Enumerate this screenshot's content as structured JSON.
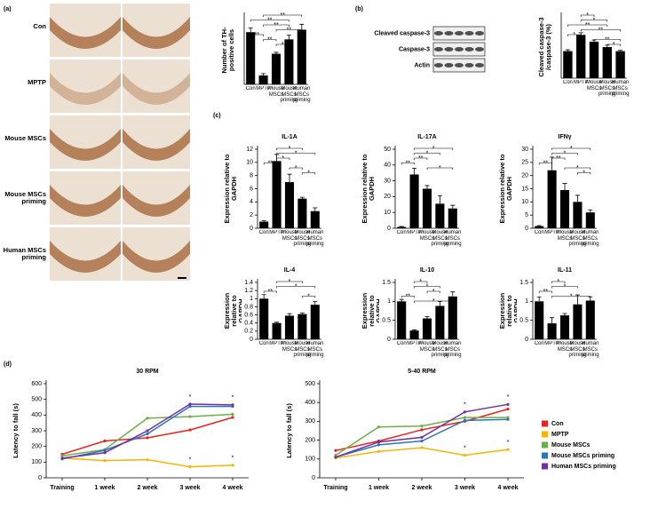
{
  "chart_data": [
    {
      "type": "bar",
      "panel": "(a)",
      "ylabel": "Number of TH-positive cells",
      "image_rows": [
        "Con",
        "MPTP",
        "Mouse MSCs",
        "Mouse MSCs priming",
        "Human MSCs priming"
      ],
      "categories": [
        "Con",
        "MPTP",
        "Mouse MSCs",
        "Mouse MSCs priming",
        "Human MSCs priming"
      ],
      "values": [
        145,
        25,
        85,
        125,
        152
      ],
      "errors": [
        12,
        5,
        4,
        12,
        15
      ],
      "ylim": [
        0,
        190
      ],
      "significance": [
        {
          "from": 1,
          "to": 4,
          "label": "**"
        },
        {
          "from": 0,
          "to": 3,
          "label": "**"
        },
        {
          "from": 1,
          "to": 3,
          "label": "**"
        },
        {
          "from": 2,
          "to": 4,
          "label": "**"
        },
        {
          "from": 0,
          "to": 1,
          "label": "**"
        },
        {
          "from": 1,
          "to": 2,
          "label": "**"
        },
        {
          "from": 2,
          "to": 3,
          "label": "*"
        }
      ]
    },
    {
      "type": "bar",
      "panel": "(b)",
      "ylabel": "Cleaved caspase-3 /caspase-3 (%)",
      "blot_labels": [
        "Cleaved caspase-3",
        "Caspase-3",
        "Actin"
      ],
      "categories": [
        "Con",
        "MPTP",
        "Mouse MSCs",
        "Mouse MSCs priming",
        "Human MSCs priming"
      ],
      "values": [
        100,
        160,
        135,
        115,
        100
      ],
      "errors": [
        5,
        8,
        6,
        7,
        3
      ],
      "ylim": [
        0,
        230
      ],
      "significance": [
        {
          "from": 1,
          "to": 2,
          "label": "*"
        },
        {
          "from": 1,
          "to": 3,
          "label": "*"
        },
        {
          "from": 0,
          "to": 3,
          "label": "**"
        },
        {
          "from": 1,
          "to": 4,
          "label": "**"
        },
        {
          "from": 0,
          "to": 1,
          "label": "*"
        },
        {
          "from": 2,
          "to": 4,
          "label": "**"
        },
        {
          "from": 3,
          "to": 4,
          "label": "*"
        }
      ]
    },
    {
      "type": "bar",
      "panel": "(c)",
      "title": "IL-1A",
      "ylabel": "Expression relative to GAPDH",
      "categories": [
        "Con",
        "MPTP",
        "Mouse MSCs",
        "Mouse MSCs priming",
        "Human MSCs priming"
      ],
      "values": [
        1,
        10.2,
        7,
        4.5,
        2.6
      ],
      "errors": [
        0.15,
        1,
        1.2,
        0.2,
        0.5
      ],
      "ylim": [
        0,
        12
      ],
      "yticks": [
        0,
        2,
        4,
        6,
        8,
        10,
        12
      ],
      "significance": [
        {
          "from": 1,
          "to": 3,
          "label": "*"
        },
        {
          "from": 1,
          "to": 4,
          "label": "*"
        },
        {
          "from": 1,
          "to": 2,
          "label": "*"
        },
        {
          "from": 0,
          "to": 1,
          "label": "**"
        },
        {
          "from": 2,
          "to": 3,
          "label": "*"
        },
        {
          "from": 3,
          "to": 4,
          "label": "*"
        }
      ]
    },
    {
      "type": "bar",
      "title": "IL-17A",
      "ylabel": "Expression relative to GAPDH",
      "categories": [
        "Con",
        "MPTP",
        "Mouse MSCs",
        "Mouse MSCs priming",
        "Human MSCs priming"
      ],
      "values": [
        0.8,
        34,
        25,
        15.5,
        12.5
      ],
      "errors": [
        0.3,
        4,
        2,
        5,
        2
      ],
      "ylim": [
        0,
        50
      ],
      "yticks": [
        0,
        10,
        20,
        30,
        40,
        50
      ],
      "significance": [
        {
          "from": 1,
          "to": 4,
          "label": "*"
        },
        {
          "from": 1,
          "to": 3,
          "label": "*"
        },
        {
          "from": 1,
          "to": 2,
          "label": "**"
        },
        {
          "from": 0,
          "to": 1,
          "label": "**"
        },
        {
          "from": 2,
          "to": 4,
          "label": "*"
        }
      ]
    },
    {
      "type": "bar",
      "title": "IFNγ",
      "ylabel": "Expression relative to GAPDH",
      "categories": [
        "Con",
        "MPTP",
        "Mouse MSCs",
        "Mouse MSCs priming",
        "Human MSCs priming"
      ],
      "values": [
        0.8,
        22,
        14.5,
        10,
        6
      ],
      "errors": [
        0.2,
        5,
        2.5,
        2.5,
        1
      ],
      "ylim": [
        0,
        30
      ],
      "yticks": [
        0,
        5,
        10,
        15,
        20,
        25,
        30
      ],
      "significance": [
        {
          "from": 1,
          "to": 4,
          "label": "*"
        },
        {
          "from": 1,
          "to": 3,
          "label": "*"
        },
        {
          "from": 1,
          "to": 2,
          "label": "**"
        },
        {
          "from": 0,
          "to": 1,
          "label": "**"
        },
        {
          "from": 2,
          "to": 4,
          "label": "*"
        },
        {
          "from": 3,
          "to": 4,
          "label": "*"
        }
      ]
    },
    {
      "type": "bar",
      "title": "IL-4",
      "ylabel": "Expression relative to GAPDH",
      "categories": [
        "Con",
        "MPTP",
        "Mouse MSCs",
        "Mouse MSCs priming",
        "Human MSCs priming"
      ],
      "values": [
        1.0,
        0.4,
        0.58,
        0.62,
        0.85
      ],
      "errors": [
        0.1,
        0.02,
        0.05,
        0.03,
        0.08
      ],
      "ylim": [
        0,
        1.4
      ],
      "yticks": [
        0,
        0.2,
        0.4,
        0.6,
        0.8,
        1,
        1.2,
        1.4
      ],
      "significance": [
        {
          "from": 1,
          "to": 3,
          "label": "*"
        },
        {
          "from": 1,
          "to": 4,
          "label": "*"
        },
        {
          "from": 0,
          "to": 1,
          "label": "**"
        },
        {
          "from": 3,
          "to": 4,
          "label": "*"
        }
      ]
    },
    {
      "type": "bar",
      "title": "IL-10",
      "ylabel": "Expression relative to GAPDH",
      "categories": [
        "Con",
        "MPTP",
        "Mouse MSCs",
        "Mouse MSCs priming",
        "Human MSCs priming"
      ],
      "values": [
        1,
        0.23,
        0.55,
        0.88,
        1.13
      ],
      "errors": [
        0.05,
        0.02,
        0.05,
        0.12,
        0.12
      ],
      "ylim": [
        0,
        1.5
      ],
      "yticks": [
        0,
        0.5,
        1,
        1.5
      ],
      "significance": [
        {
          "from": 1,
          "to": 2,
          "label": "*"
        },
        {
          "from": 1,
          "to": 3,
          "label": "*"
        },
        {
          "from": 2,
          "to": 3,
          "label": "*"
        },
        {
          "from": 0,
          "to": 1,
          "label": "**"
        },
        {
          "from": 1,
          "to": 4,
          "label": "*"
        }
      ]
    },
    {
      "type": "bar",
      "title": "IL-11",
      "ylabel": "Expression relative to GAPDH",
      "categories": [
        "Con",
        "MPTP",
        "Mouse MSCs",
        "Mouse MSCs priming",
        "Human MSCs priming"
      ],
      "values": [
        1,
        0.42,
        0.63,
        0.92,
        1.02
      ],
      "errors": [
        0.12,
        0.15,
        0.05,
        0.25,
        0.1
      ],
      "ylim": [
        0,
        1.5
      ],
      "yticks": [
        0,
        0.5,
        1,
        1.5
      ],
      "significance": [
        {
          "from": 1,
          "to": 2,
          "label": "*"
        },
        {
          "from": 1,
          "to": 3,
          "label": "*"
        },
        {
          "from": 0,
          "to": 1,
          "label": "**"
        },
        {
          "from": 1,
          "to": 4,
          "label": "*"
        }
      ]
    },
    {
      "type": "line",
      "panel": "(d)",
      "title": "30 RPM",
      "ylabel": "Latency to fall (s)",
      "categories": [
        "Training",
        "1 week",
        "2 week",
        "3 week",
        "4 week"
      ],
      "ylim": [
        0,
        600
      ],
      "yticks": [
        0,
        100,
        200,
        300,
        400,
        500,
        600
      ],
      "series": [
        {
          "name": "Con",
          "color": "#e8231f",
          "values": [
            150,
            235,
            255,
            305,
            385
          ]
        },
        {
          "name": "MPTP",
          "color": "#f5b400",
          "values": [
            125,
            110,
            115,
            70,
            80
          ]
        },
        {
          "name": "Mouse MSCs",
          "color": "#70ad47",
          "values": [
            140,
            180,
            380,
            390,
            405
          ]
        },
        {
          "name": "Mouse MSCs priming",
          "color": "#2e75b6",
          "values": [
            120,
            175,
            280,
            455,
            455
          ]
        },
        {
          "name": "Human MSCs priming",
          "color": "#7030a0",
          "values": [
            125,
            160,
            300,
            470,
            465
          ]
        }
      ],
      "annotations": [
        {
          "label": "*",
          "series": 4,
          "index": 3
        },
        {
          "label": "*",
          "series": 4,
          "index": 4
        },
        {
          "label": "*",
          "series": 1,
          "index": 3
        },
        {
          "label": "*",
          "series": 1,
          "index": 4
        }
      ]
    },
    {
      "type": "line",
      "title": "5-40 RPM",
      "ylabel": "Latency to fall (s)",
      "legend": "right",
      "categories": [
        "Training",
        "1 week",
        "2 week",
        "3 week",
        "4 week"
      ],
      "ylim": [
        0,
        500
      ],
      "yticks": [
        0,
        100,
        200,
        300,
        400,
        500
      ],
      "series": [
        {
          "name": "Con",
          "color": "#e8231f",
          "values": [
            145,
            195,
            255,
            300,
            365
          ]
        },
        {
          "name": "MPTP",
          "color": "#f5b400",
          "values": [
            105,
            140,
            160,
            120,
            150
          ]
        },
        {
          "name": "Mouse MSCs",
          "color": "#70ad47",
          "values": [
            120,
            270,
            275,
            320,
            320
          ]
        },
        {
          "name": "Mouse MSCs priming",
          "color": "#2e75b6",
          "values": [
            110,
            175,
            195,
            305,
            310
          ]
        },
        {
          "name": "Human MSCs priming",
          "color": "#7030a0",
          "values": [
            110,
            190,
            215,
            350,
            390
          ]
        }
      ],
      "annotations": [
        {
          "label": "*",
          "series": 4,
          "index": 3
        },
        {
          "label": "*",
          "series": 4,
          "index": 4
        },
        {
          "label": "*",
          "series": 1,
          "index": 3
        },
        {
          "label": "*",
          "series": 1,
          "index": 4
        }
      ]
    }
  ]
}
